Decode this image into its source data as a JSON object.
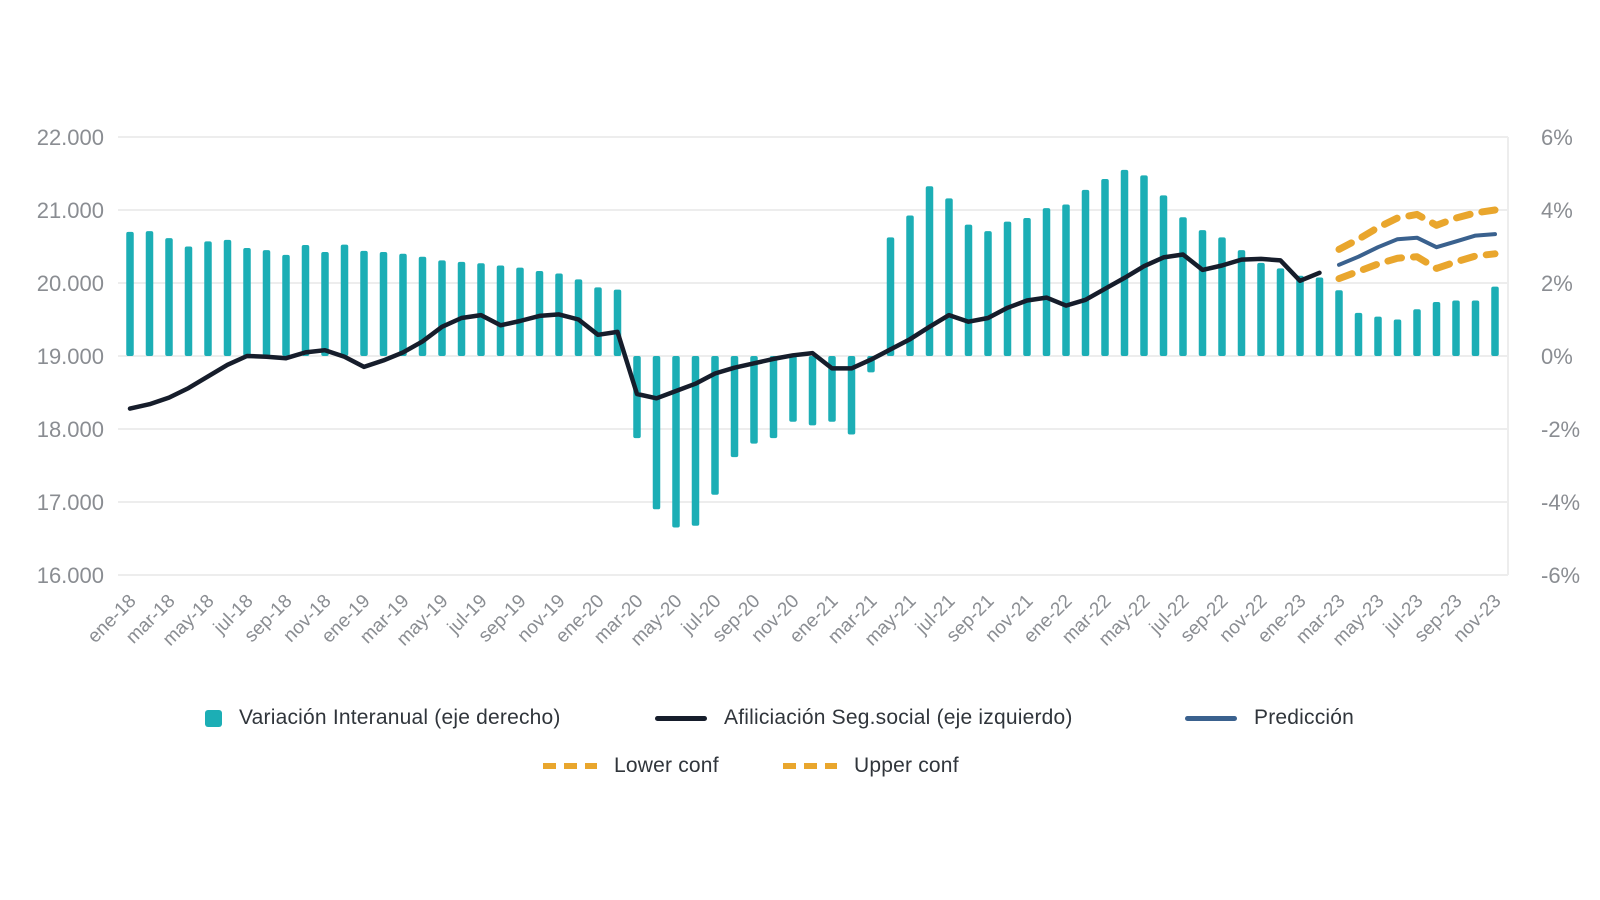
{
  "chart_data": {
    "type": "bar",
    "title": "",
    "xlabel": "",
    "ylabel_left": "",
    "ylabel_right": "",
    "grid": "horizontal",
    "legend_position": "bottom",
    "months": [
      "ene-18",
      "feb-18",
      "mar-18",
      "abr-18",
      "may-18",
      "jun-18",
      "jul-18",
      "ago-18",
      "sep-18",
      "oct-18",
      "nov-18",
      "dic-18",
      "ene-19",
      "feb-19",
      "mar-19",
      "abr-19",
      "may-19",
      "jun-19",
      "jul-19",
      "ago-19",
      "sep-19",
      "oct-19",
      "nov-19",
      "dic-19",
      "ene-20",
      "feb-20",
      "mar-20",
      "abr-20",
      "may-20",
      "jun-20",
      "jul-20",
      "ago-20",
      "sep-20",
      "oct-20",
      "nov-20",
      "dic-20",
      "ene-21",
      "feb-21",
      "mar-21",
      "abr-21",
      "may-21",
      "jun-21",
      "jul-21",
      "ago-21",
      "sep-21",
      "oct-21",
      "nov-21",
      "dic-21",
      "ene-22",
      "feb-22",
      "mar-22",
      "abr-22",
      "may-22",
      "jun-22",
      "jul-22",
      "ago-22",
      "sep-22",
      "oct-22",
      "nov-22",
      "dic-22",
      "ene-23",
      "feb-23",
      "mar-23",
      "abr-23",
      "may-23",
      "jun-23",
      "jul-23",
      "ago-23",
      "sep-23",
      "oct-23",
      "nov-23"
    ],
    "x_tick_every": 2,
    "left_axis": {
      "tick_labels": [
        "22.000",
        "21.000",
        "20.000",
        "19.000",
        "18.000",
        "17.000",
        "16.000"
      ],
      "tick_values": [
        22000,
        21000,
        20000,
        19000,
        18000,
        17000,
        16000
      ],
      "min": 16000,
      "max": 22000
    },
    "right_axis": {
      "tick_labels": [
        "6%",
        "4%",
        "2%",
        "0%",
        "-2%",
        "-4%",
        "-6%"
      ],
      "tick_values": [
        6,
        4,
        2,
        0,
        -2,
        -4,
        -6
      ],
      "min": -6,
      "max": 6
    },
    "series": [
      {
        "name": "Variación Interanual (eje derecho)",
        "type": "bar",
        "axis": "right",
        "color": "#1CAEB5",
        "start_index": 0,
        "values": [
          3.4,
          3.42,
          3.23,
          3.0,
          3.14,
          3.18,
          2.96,
          2.9,
          2.77,
          3.04,
          2.85,
          3.05,
          2.88,
          2.85,
          2.8,
          2.72,
          2.62,
          2.58,
          2.54,
          2.48,
          2.42,
          2.33,
          2.26,
          2.1,
          1.88,
          1.82,
          -2.25,
          -4.2,
          -4.7,
          -4.65,
          -3.8,
          -2.77,
          -2.4,
          -2.25,
          -1.8,
          -1.9,
          -1.8,
          -2.15,
          -0.45,
          3.25,
          3.85,
          4.65,
          4.32,
          3.6,
          3.42,
          3.68,
          3.78,
          4.05,
          4.15,
          4.55,
          4.85,
          5.1,
          4.95,
          4.4,
          3.8,
          3.45,
          3.25,
          2.9,
          2.55,
          2.4,
          2.2,
          2.15,
          1.8,
          1.18,
          1.08,
          1.0,
          1.28,
          1.48,
          1.52,
          1.52,
          1.9
        ]
      },
      {
        "name": "Afiliciación Seg.social (eje izquierdo)",
        "type": "line",
        "axis": "left",
        "color": "#161D2B",
        "start_index": 0,
        "values": [
          18280,
          18340,
          18430,
          18560,
          18720,
          18880,
          19000,
          18990,
          18970,
          19050,
          19080,
          18990,
          18850,
          18940,
          19050,
          19200,
          19400,
          19520,
          19560,
          19420,
          19480,
          19550,
          19570,
          19500,
          19290,
          19330,
          18480,
          18420,
          18520,
          18620,
          18760,
          18840,
          18900,
          18960,
          19010,
          19040,
          18830,
          18830,
          18950,
          19090,
          19230,
          19400,
          19560,
          19470,
          19520,
          19660,
          19760,
          19800,
          19690,
          19770,
          19920,
          20070,
          20230,
          20350,
          20390,
          20180,
          20240,
          20320,
          20330,
          20310,
          20030,
          20140
        ]
      },
      {
        "name": "Predicción",
        "type": "line",
        "axis": "left",
        "color": "#3A618E",
        "start_index": 62,
        "values": [
          20250,
          20360,
          20490,
          20600,
          20620,
          20490,
          20570,
          20650,
          20670
        ]
      },
      {
        "name": "Lower conf",
        "type": "dashed-line",
        "axis": "left",
        "color": "#E9A62D",
        "start_index": 62,
        "values": [
          20060,
          20160,
          20260,
          20340,
          20360,
          20200,
          20290,
          20370,
          20400
        ]
      },
      {
        "name": "Upper conf",
        "type": "dashed-line",
        "axis": "left",
        "color": "#E9A62D",
        "start_index": 62,
        "values": [
          20460,
          20600,
          20760,
          20890,
          20940,
          20790,
          20890,
          20960,
          21000
        ]
      }
    ],
    "colors": {
      "bar_teal": "#1CAEB5",
      "actual_line": "#161D2B",
      "prediction_line": "#3A618E",
      "confidence_band": "#E9A62D",
      "gridline": "#EDEDED",
      "axis_text": "#8A8D92",
      "legend_text": "#30353B"
    }
  }
}
